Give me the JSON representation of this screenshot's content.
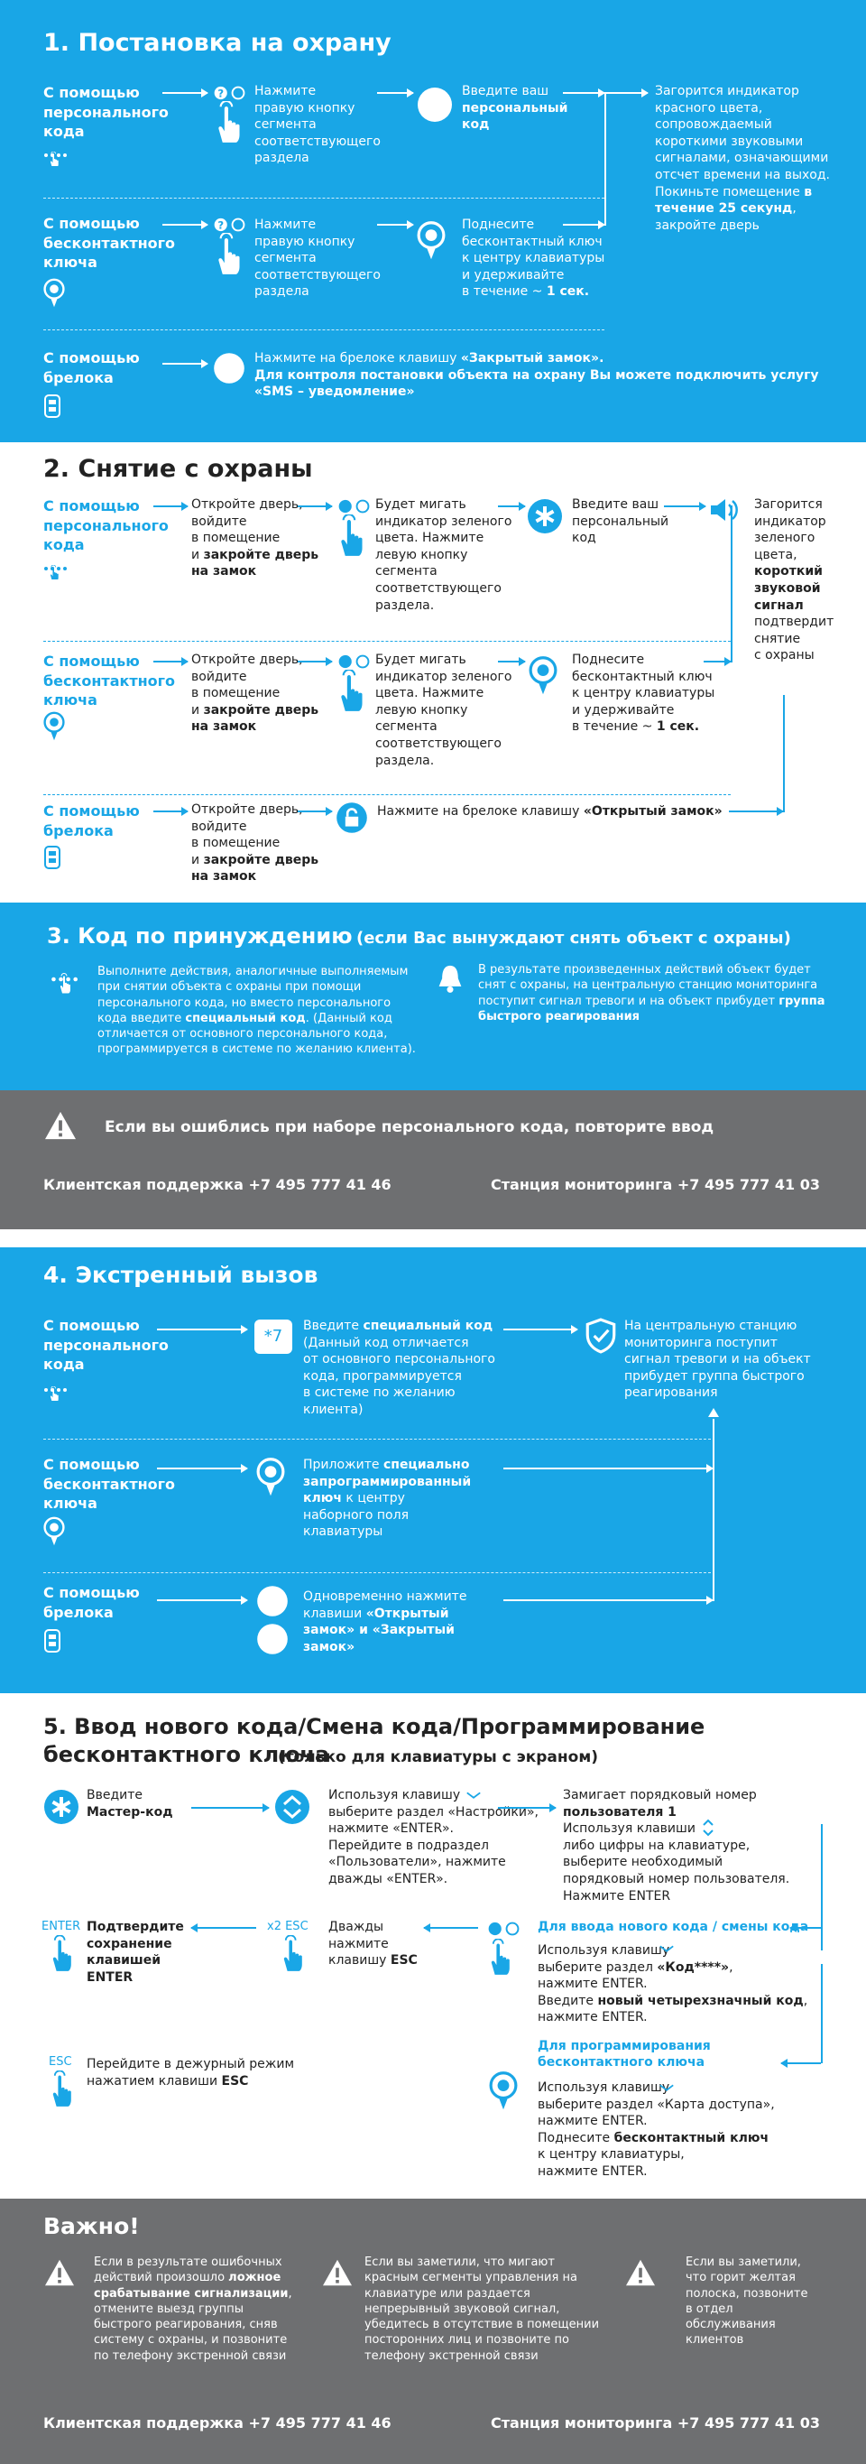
{
  "s1": {
    "title": "1. Постановка на охрану",
    "code_label": "С помощью\nперсонального\nкода",
    "code_step": "Нажмите\nправую кнопку\nсегмента\nсоответствующего\nраздела",
    "code_enter_pre": "Введите ваш",
    "code_enter_b": "персональный\nкод",
    "result_pre": "Загорится индикатор\nкрасного цвета,\nсопровождаемый\nкороткими звуковыми\nсигналами, означающими\nотсчет времени на выход.\nПокиньте помещение",
    "result_b": "в течение 25 секунд",
    "result_post": ",\nзакройте дверь",
    "key_label": "С помощью\nбесконтактного\nключа",
    "key_step": "Нажмите\nправую кнопку\nсегмента\nсоответствующего\nраздела",
    "key_apply": "Поднесите\nбесконтактный ключ\nк центру клавиатуры\nи удерживайте\nв течение ~ ",
    "key_apply_b": "1 сек.",
    "fob_label": "С помощью\nбрелока",
    "fob_text1": "Нажмите на брелоке клавишу ",
    "fob_text1_b": "«Закрытый замок».",
    "fob_text2": "Для контроля  постановки объекта на охрану Вы можете подключить услугу\n«SMS – уведомление»"
  },
  "s2": {
    "title": "2. Снятие с охраны",
    "code_label": "С помощью\nперсонального\nкода",
    "door_pre": "Откройте дверь,\nвойдите\nв помещение\nи ",
    "door_b": "закройте дверь\nна замок",
    "blink": "Будет мигать\nиндикатор зеленого\nцвета. Нажмите\nлевую кнопку\nсегмента\nсоответствующего\nраздела.",
    "enter": "Введите ваш\nперсональный\nкод",
    "result_pre": "Загорится\nиндикатор\nзеленого\nцвета,",
    "result_b": "короткий\nзвуковой\nсигнал",
    "result_post": "подтвердит\nснятие\nс охраны",
    "key_label": "С помощью\nбесконтактного\nключа",
    "door2_pre": "Откройте дверь,\nвойдите\nв помещение\nи ",
    "door2_b": "закройте дверь\nна замок",
    "blink2": "Будет мигать\nиндикатор зеленого\nцвета. Нажмите\nлевую кнопку\nсегмента\nсоответствующего\nраздела.",
    "key_apply": "Поднесите\nбесконтактный ключ\nк центру клавиатуры\nи удерживайте\nв течение ~ ",
    "key_apply_b": "1 сек.",
    "fob_label": "С помощью\nбрелока",
    "door3_pre": "Откройте дверь,\nвойдите\nв помещение\nи ",
    "door3_b": "закройте дверь\nна замок",
    "fob_text": "Нажмите на брелоке клавишу ",
    "fob_text_b": "«Открытый замок»"
  },
  "s3": {
    "title": "3. Код по принуждению",
    "title_note": "(если Вас вынуждают снять объект с охраны)",
    "left_pre": "Выполните действия, аналогичные выполняемым\nпри снятии объекта с охраны при помощи\nперсонального кода, но вместо персонального\nкода введите ",
    "left_b": "специальный код",
    "left_post": ". (Данный код\nотличается от основного персонального кода,\nпрограммируется в системе по желанию клиента).",
    "right_pre": "В результате произведенных действий объект будет\nснят с охраны, на центральную станцию мониторинга\nпоступит сигнал тревоги и на объект прибудет ",
    "right_b": "группа\nбыстрого реагирования"
  },
  "warn": {
    "text": "Если вы ошиблись при наборе персонального кода, повторите ввод",
    "support": "Клиентская поддержка +7 495 777  41  46",
    "station": "Станция мониторинга  +7 495 777  41 03"
  },
  "s4": {
    "title": "4. Экстренный вызов",
    "code_label": "С помощью\nперсонального\nкода",
    "special_pre": "Введите ",
    "special_b": "специальный код",
    "special_post": "\n(Данный код отличается\nот основного персонального\nкода, программируется\nв системе по желанию\nклиента)",
    "star_key": "*7",
    "result": "На центральную станцию\nмониторинга поступит\nсигнал тревоги и на объект\nприбудет группа быстрого\nреагирования",
    "key_label": "С помощью\nбесконтактного\nключа",
    "key_pre": "Приложите ",
    "key_b": "специально\nзапрограммированный\nключ",
    "key_post": " к центру\nнаборного поля\nклавиатуры",
    "fob_label": "С помощью\nбрелока",
    "fob_pre": "Одновременно нажмите\nклавиши ",
    "fob_b": "«Открытый\nзамок» и «Закрытый\nзамок»"
  },
  "s5": {
    "title": "5. Ввод нового кода/Смена кода/Программирование\nбесконтактного ключа",
    "title_note": "(только для клавиатуры с экраном)",
    "master_pre": "Введите\n",
    "master_b": "Мастер-код",
    "nav": "Используя клавишу\nвыберите раздел «Настройки»,\nнажмите «ENTER».\nПерейдите в подраздел\n«Пользователи», нажмите\nдважды «ENTER».",
    "user_pre": "Замигает порядковый номер\n",
    "user_b": "пользователя 1",
    "user_post": "\nИспользуя клавиши\nлибо цифры на клавиатуре,\nвыберите необходимый\nпорядковый номер пользователя.\nНажмите ENTER",
    "enter_key": "ENTER",
    "confirm": "Подтвердите\nсохранение\nклавишей\nENTER",
    "esc2_key": "x2 ESC",
    "twice": "Дважды\nнажмите\nклавишу ",
    "twice_b": "ESC",
    "new_code_head": "Для ввода нового кода / смены кода",
    "new_code_pre": "Используя клавишу\nвыберите раздел ",
    "new_code_b": "«Код****»",
    "new_code_mid": ",\nнажмите ENTER.\nВведите ",
    "new_code_b2": "новый четырехзначный код",
    "new_code_post": ",\nнажмите ENTER.",
    "esc_key": "ESC",
    "duty": "Перейдите в дежурный режим\nнажатием клавиши ",
    "duty_b": "ESC",
    "prog_head": "Для программирования\nбесконтактного ключа",
    "prog_pre": "Используя клавишу\nвыберите раздел «Карта доступа»,\nнажмите ENTER.\nПоднесите ",
    "prog_b": "бесконтактный ключ",
    "prog_post": "\nк центру клавиатуры,\nнажмите ENTER."
  },
  "important": {
    "title": "Важно!",
    "n1_pre": "Если в результате ошибочных\nдействий произошло ",
    "n1_b": "ложное\nсрабатывание сигнализации",
    "n1_post": ",\nотмените выезд группы\nбыстрого реагирования, сняв\nсистему с охраны, и позвоните\nпо телефону экстренной связи",
    "n2": "Если вы заметили, что мигают\nкрасным сегменты управления на\nклавиатуре или раздается\nнепрерывный звуковой сигнал,\nубедитесь в отсутствие в помещении\nпосторонних лиц и позвоните по\nтелефону экстренной связи",
    "n3": "Если вы заметили,\nчто горит желтая\nполоска, позвоните\nв отдел\nобслуживания\nклиентов",
    "support": "Клиентская поддержка +7 495 777  41  46",
    "station": "Станция мониторинга  +7 495 777  41 03"
  },
  "colors": {
    "blue": "#19a6e6",
    "gray": "#6e6f71",
    "dark": "#222222"
  }
}
